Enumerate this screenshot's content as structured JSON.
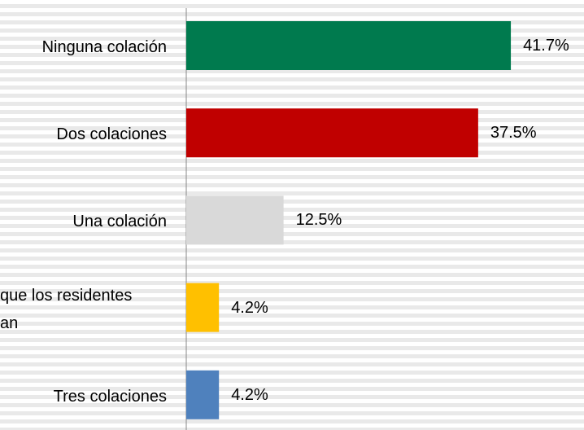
{
  "chart_data": {
    "type": "barh",
    "categories": [
      "Ninguna colación",
      "Dos colaciones",
      "Una colación",
      "que los residentes\nan",
      "Tres colaciones"
    ],
    "values": [
      41.7,
      37.5,
      12.5,
      4.2,
      4.2
    ],
    "value_labels": [
      "41.7%",
      "37.5%",
      "12.5%",
      "4.2%",
      "4.2%"
    ],
    "colors": [
      "#007A4E",
      "#C00000",
      "#D9D9D9",
      "#FFC000",
      "#4F81BD"
    ]
  }
}
